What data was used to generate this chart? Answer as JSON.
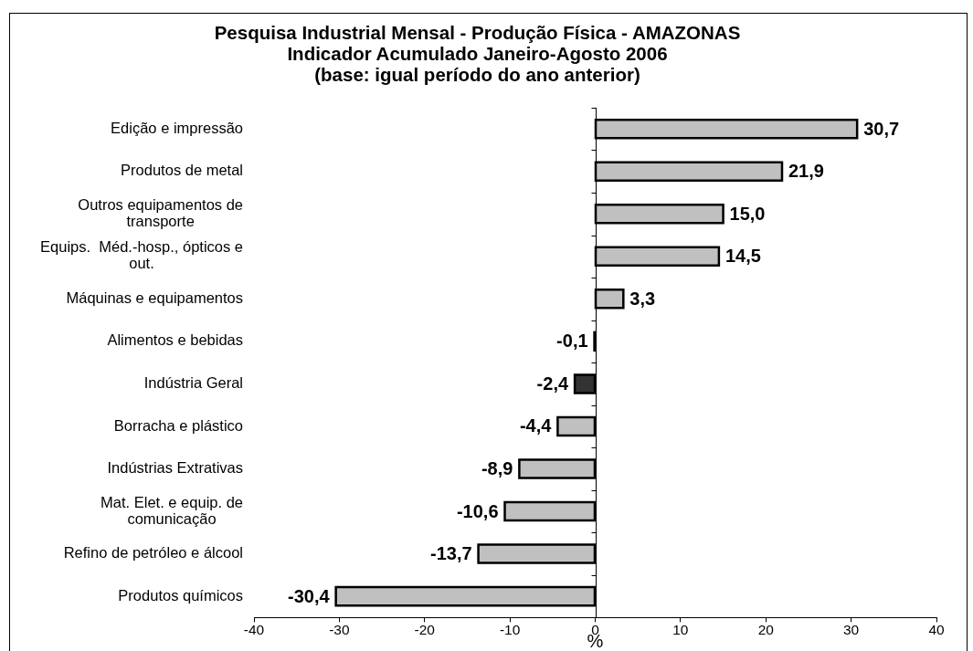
{
  "chart_data": {
    "type": "bar",
    "orientation": "horizontal",
    "title": "Pesquisa Industrial Mensal - Produção Física - AMAZONAS",
    "subtitle": "Indicador Acumulado Janeiro-Agosto 2006\n(base: igual período do ano anterior)",
    "xlabel": "%",
    "categories": [
      "Edição e impressão",
      "Produtos de metal",
      "Outros equipamentos de transporte",
      "Equips.  Méd.-hosp., ópticos e out.",
      "Máquinas e equipamentos",
      "Alimentos e bebidas",
      "Indústria Geral",
      "Borracha e plástico",
      "Indústrias Extrativas",
      "Mat. Elet. e equip. de comunicação",
      "Refino de petróleo e álcool",
      "Produtos químicos"
    ],
    "values": [
      30.7,
      21.9,
      15.0,
      14.5,
      3.3,
      -0.1,
      -2.4,
      -4.4,
      -8.9,
      -10.6,
      -13.7,
      -30.4
    ],
    "colors": [
      "#c0c0c0",
      "#c0c0c0",
      "#c0c0c0",
      "#c0c0c0",
      "#c0c0c0",
      "#000000",
      "#333333",
      "#c0c0c0",
      "#c0c0c0",
      "#c0c0c0",
      "#c0c0c0",
      "#c0c0c0"
    ],
    "value_labels": [
      "30,7",
      "21,9",
      "15,0",
      "14,5",
      "3,3",
      "-0,1",
      "-2,4",
      "-4,4",
      "-8,9",
      "-10,6",
      "-13,7",
      "-30,4"
    ],
    "xlim": [
      -40,
      40
    ],
    "xticks": [
      -40,
      -30,
      -20,
      -10,
      0,
      10,
      20,
      30,
      40
    ],
    "legend": false
  }
}
